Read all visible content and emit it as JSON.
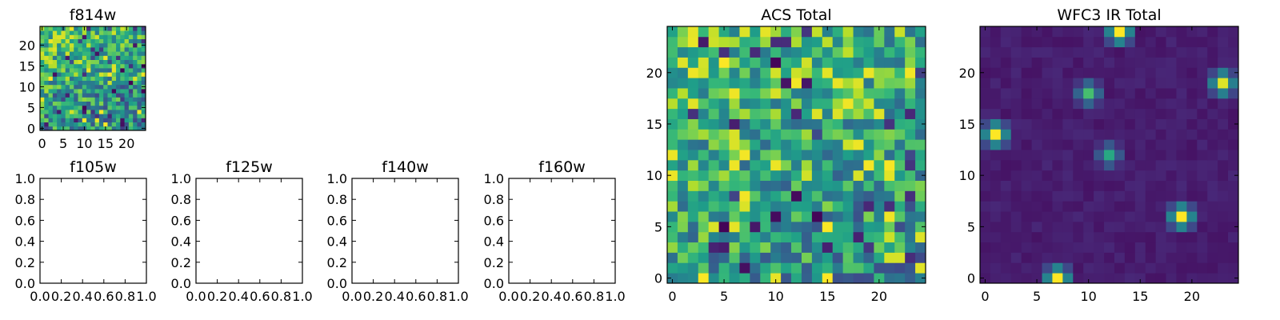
{
  "chart_data": [
    {
      "type": "heatmap",
      "title": "f814w",
      "grid_size": [
        25,
        25
      ],
      "xlim": [
        -0.5,
        24.5
      ],
      "ylim": [
        -0.5,
        24.5
      ],
      "x_ticks": [
        0,
        5,
        10,
        15,
        20
      ],
      "y_ticks": [
        0,
        5,
        10,
        15,
        20
      ],
      "colormap": "viridis",
      "grid": false,
      "value_note": "pixel grid resembling ACS Total; mostly green/yellow noise"
    },
    {
      "type": "heatmap",
      "title": "f105w",
      "empty": true,
      "xlim": [
        0.0,
        1.0
      ],
      "ylim": [
        0.0,
        1.0
      ],
      "x_ticks": [
        "0.0",
        "0.2",
        "0.4",
        "0.6",
        "0.8",
        "1.0"
      ],
      "y_ticks": [
        "0.0",
        "0.2",
        "0.4",
        "0.6",
        "0.8",
        "1.0"
      ]
    },
    {
      "type": "heatmap",
      "title": "f125w",
      "empty": true,
      "xlim": [
        0.0,
        1.0
      ],
      "ylim": [
        0.0,
        1.0
      ],
      "x_ticks": [
        "0.0",
        "0.2",
        "0.4",
        "0.6",
        "0.8",
        "1.0"
      ],
      "y_ticks": [
        "0.0",
        "0.2",
        "0.4",
        "0.6",
        "0.8",
        "1.0"
      ]
    },
    {
      "type": "heatmap",
      "title": "f140w",
      "empty": true,
      "xlim": [
        0.0,
        1.0
      ],
      "ylim": [
        0.0,
        1.0
      ],
      "x_ticks": [
        "0.0",
        "0.2",
        "0.4",
        "0.6",
        "0.8",
        "1.0"
      ],
      "y_ticks": [
        "0.0",
        "0.2",
        "0.4",
        "0.6",
        "0.8",
        "1.0"
      ]
    },
    {
      "type": "heatmap",
      "title": "f160w",
      "empty": true,
      "xlim": [
        0.0,
        1.0
      ],
      "ylim": [
        0.0,
        1.0
      ],
      "x_ticks": [
        "0.0",
        "0.2",
        "0.4",
        "0.6",
        "0.8",
        "1.0"
      ],
      "y_ticks": [
        "0.0",
        "0.2",
        "0.4",
        "0.6",
        "0.8",
        "1.0"
      ]
    },
    {
      "type": "heatmap",
      "title": "ACS Total",
      "grid_size": [
        25,
        25
      ],
      "xlim": [
        -0.5,
        24.5
      ],
      "ylim": [
        -0.5,
        24.5
      ],
      "x_ticks": [
        0,
        5,
        10,
        15,
        20
      ],
      "y_ticks": [
        0,
        5,
        10,
        15,
        20
      ],
      "colormap": "viridis",
      "grid": false,
      "value_note": "noise field; top-left region brightest (yellow), scattered dark (purple) pixels"
    },
    {
      "type": "heatmap",
      "title": "WFC3 IR Total",
      "grid_size": [
        25,
        25
      ],
      "xlim": [
        -0.5,
        24.5
      ],
      "ylim": [
        -0.5,
        24.5
      ],
      "x_ticks": [
        0,
        5,
        10,
        15,
        20
      ],
      "y_ticks": [
        0,
        5,
        10,
        15,
        20
      ],
      "colormap": "viridis",
      "grid": false,
      "background_level": 0.05,
      "bright_sources": [
        {
          "x": 12.5,
          "y": 23.5,
          "peak": 1.0
        },
        {
          "x": 1,
          "y": 14,
          "peak": 1.0
        },
        {
          "x": 10,
          "y": 18,
          "peak": 0.7
        },
        {
          "x": 23,
          "y": 19,
          "peak": 0.95
        },
        {
          "x": 12,
          "y": 12,
          "peak": 0.6
        },
        {
          "x": 19,
          "y": 6,
          "peak": 1.0
        },
        {
          "x": 7,
          "y": 0,
          "peak": 1.0
        }
      ]
    }
  ]
}
